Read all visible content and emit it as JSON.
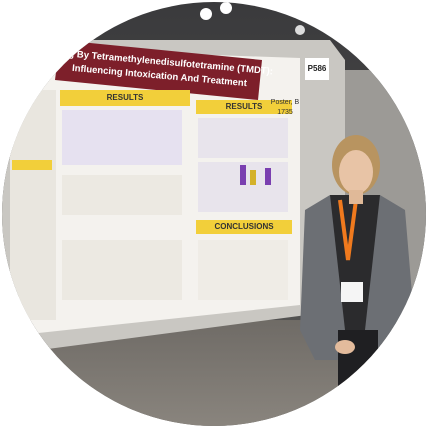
{
  "poster": {
    "title_lines": [
      "oning By Tetramethylenedisulfotetramine (TMDT):",
      "Influencing Intoxication And Treatment"
    ],
    "section_headers": [
      "RESULTS",
      "RESULTS",
      "CONCLUSIONS"
    ],
    "board_number": "P586",
    "poster_label": "Poster, B",
    "poster_number": "1735"
  }
}
